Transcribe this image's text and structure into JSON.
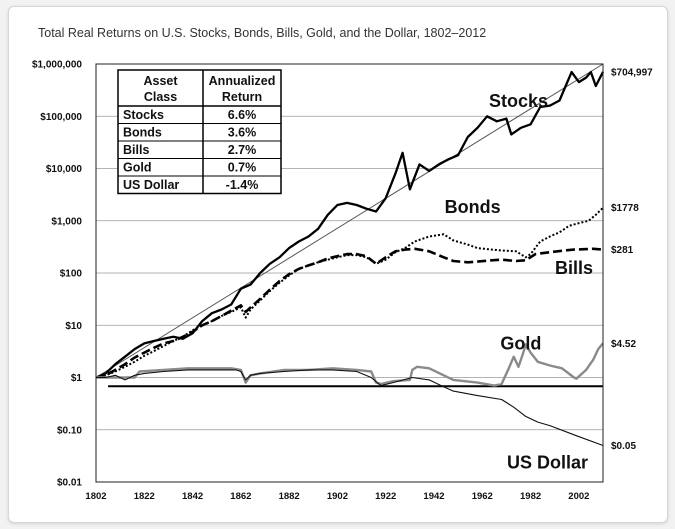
{
  "chart_data": {
    "type": "line",
    "title": "Total Real Returns on U.S. Stocks, Bonds, Bills, Gold, and the Dollar, 1802–2012",
    "yscale": "log",
    "ylim": [
      0.01,
      1000000
    ],
    "xlim": [
      1802,
      2012
    ],
    "y_tick_values": [
      0.01,
      0.1,
      1,
      10,
      100,
      1000,
      10000,
      100000,
      1000000
    ],
    "y_tick_labels": [
      "$0.01",
      "$0.10",
      "$1",
      "$10",
      "$100",
      "$1,000",
      "$10,000",
      "$100,000",
      "$1,000,000"
    ],
    "x_tick_values": [
      1802,
      1822,
      1842,
      1862,
      1882,
      1902,
      1922,
      1942,
      1962,
      1982,
      2002
    ],
    "x_tick_labels": [
      "1802",
      "1822",
      "1842",
      "1862",
      "1882",
      "1902",
      "1922",
      "1942",
      "1962",
      "1982",
      "2002"
    ],
    "grid": "horizontal",
    "reference_line_value": 0.68,
    "trend_line": {
      "from": [
        1802,
        1
      ],
      "to": [
        2012,
        1000000
      ]
    },
    "series": [
      {
        "name": "Stocks",
        "label_x": 1977,
        "label_y": 150000,
        "end_label": "$704,997",
        "end_value": 704997,
        "x": [
          1802,
          1806,
          1810,
          1814,
          1818,
          1822,
          1826,
          1830,
          1834,
          1838,
          1842,
          1846,
          1850,
          1854,
          1858,
          1862,
          1866,
          1870,
          1874,
          1878,
          1882,
          1886,
          1890,
          1894,
          1898,
          1902,
          1906,
          1910,
          1914,
          1918,
          1922,
          1926,
          1929,
          1932,
          1936,
          1940,
          1944,
          1948,
          1952,
          1956,
          1960,
          1964,
          1968,
          1972,
          1974,
          1978,
          1982,
          1986,
          1990,
          1994,
          1999,
          2002,
          2005,
          2007,
          2009,
          2012
        ],
        "values": [
          1,
          1.2,
          1.8,
          2.5,
          3.5,
          4.5,
          5,
          5.5,
          6,
          5.5,
          7,
          12,
          17,
          20,
          25,
          50,
          60,
          100,
          150,
          200,
          300,
          400,
          500,
          700,
          1300,
          2000,
          2200,
          2000,
          1700,
          1500,
          2700,
          8000,
          20000,
          4000,
          12000,
          9000,
          12000,
          15000,
          18000,
          40000,
          60000,
          100000,
          80000,
          90000,
          45000,
          60000,
          70000,
          150000,
          160000,
          200000,
          700000,
          450000,
          550000,
          700000,
          380000,
          704997
        ]
      },
      {
        "name": "Bonds",
        "label_x": 1958,
        "label_y": 1400,
        "end_label": "$1778",
        "end_value": 1778,
        "x": [
          1802,
          1806,
          1810,
          1814,
          1818,
          1822,
          1826,
          1830,
          1834,
          1838,
          1842,
          1846,
          1850,
          1854,
          1858,
          1862,
          1864,
          1866,
          1870,
          1874,
          1878,
          1882,
          1886,
          1890,
          1894,
          1898,
          1902,
          1906,
          1910,
          1914,
          1918,
          1922,
          1926,
          1930,
          1934,
          1940,
          1946,
          1950,
          1956,
          1960,
          1966,
          1970,
          1976,
          1980,
          1982,
          1986,
          1990,
          1994,
          1998,
          2002,
          2006,
          2009,
          2012
        ],
        "values": [
          1,
          1.1,
          1.3,
          1.6,
          2,
          2.6,
          3.2,
          4,
          5,
          6,
          8,
          10,
          12,
          15,
          18,
          22,
          14,
          20,
          30,
          45,
          65,
          90,
          120,
          140,
          160,
          180,
          200,
          220,
          220,
          200,
          150,
          180,
          250,
          300,
          400,
          500,
          550,
          420,
          350,
          300,
          280,
          270,
          260,
          200,
          230,
          400,
          500,
          600,
          800,
          900,
          1000,
          1300,
          1778
        ]
      },
      {
        "name": "Bills",
        "label_x": 2000,
        "label_y": 95,
        "end_label": "$281",
        "end_value": 281,
        "x": [
          1802,
          1806,
          1810,
          1814,
          1818,
          1822,
          1826,
          1830,
          1834,
          1838,
          1842,
          1846,
          1850,
          1854,
          1858,
          1862,
          1864,
          1866,
          1870,
          1874,
          1878,
          1882,
          1886,
          1890,
          1894,
          1898,
          1902,
          1906,
          1910,
          1914,
          1918,
          1922,
          1926,
          1930,
          1934,
          1940,
          1946,
          1950,
          1956,
          1960,
          1966,
          1970,
          1976,
          1980,
          1984,
          1990,
          1996,
          2000,
          2004,
          2008,
          2012
        ],
        "values": [
          1,
          1.1,
          1.4,
          1.8,
          2.4,
          3,
          3.7,
          4.5,
          5,
          6,
          7.5,
          10,
          12,
          15,
          19,
          24,
          18,
          22,
          32,
          48,
          70,
          95,
          120,
          140,
          160,
          190,
          210,
          230,
          230,
          210,
          150,
          200,
          260,
          280,
          290,
          260,
          200,
          170,
          160,
          165,
          175,
          180,
          170,
          175,
          230,
          250,
          270,
          280,
          285,
          290,
          281
        ]
      },
      {
        "name": "Gold",
        "label_x": 1978,
        "label_y": 3.4,
        "end_label": "$4.52",
        "end_value": 4.52,
        "x": [
          1802,
          1806,
          1810,
          1814,
          1818,
          1820,
          1830,
          1840,
          1850,
          1858,
          1862,
          1864,
          1866,
          1870,
          1880,
          1890,
          1900,
          1910,
          1916,
          1918,
          1920,
          1925,
          1932,
          1933,
          1935,
          1940,
          1946,
          1950,
          1960,
          1967,
          1970,
          1973,
          1975,
          1977,
          1979,
          1980,
          1982,
          1985,
          1990,
          1995,
          2000,
          2001,
          2005,
          2008,
          2010,
          2012
        ],
        "values": [
          1,
          1,
          1,
          1,
          1,
          1.3,
          1.4,
          1.5,
          1.5,
          1.5,
          1.4,
          0.8,
          1.1,
          1.2,
          1.4,
          1.4,
          1.5,
          1.4,
          1.3,
          0.8,
          0.75,
          0.85,
          0.9,
          1.4,
          1.6,
          1.5,
          1.1,
          0.9,
          0.8,
          0.7,
          0.75,
          1.5,
          2.5,
          1.6,
          3,
          4.3,
          3,
          2,
          1.7,
          1.5,
          1,
          0.95,
          1.4,
          2.2,
          3.5,
          4.52
        ]
      },
      {
        "name": "US Dollar",
        "label_x": 1989,
        "label_y": 0.018,
        "end_label": "$0.05",
        "end_value": 0.05,
        "x": [
          1802,
          1806,
          1810,
          1814,
          1818,
          1822,
          1830,
          1840,
          1850,
          1860,
          1862,
          1864,
          1866,
          1870,
          1880,
          1890,
          1900,
          1910,
          1916,
          1920,
          1925,
          1933,
          1940,
          1945,
          1950,
          1960,
          1970,
          1975,
          1980,
          1985,
          1990,
          2000,
          2012
        ],
        "values": [
          1,
          1,
          1.1,
          0.9,
          1.1,
          1.2,
          1.3,
          1.4,
          1.4,
          1.4,
          1.3,
          0.9,
          1.1,
          1.2,
          1.3,
          1.4,
          1.4,
          1.3,
          1,
          0.7,
          0.8,
          1,
          0.9,
          0.7,
          0.55,
          0.45,
          0.38,
          0.27,
          0.18,
          0.14,
          0.12,
          0.08,
          0.05
        ]
      }
    ],
    "table": {
      "headers": [
        [
          "Asset",
          "Class"
        ],
        [
          "Annualized",
          "Return"
        ]
      ],
      "rows": [
        [
          "Stocks",
          "6.6%"
        ],
        [
          "Bonds",
          "3.6%"
        ],
        [
          "Bills",
          "2.7%"
        ],
        [
          "Gold",
          "0.7%"
        ],
        [
          "US Dollar",
          "-1.4%"
        ]
      ]
    }
  }
}
